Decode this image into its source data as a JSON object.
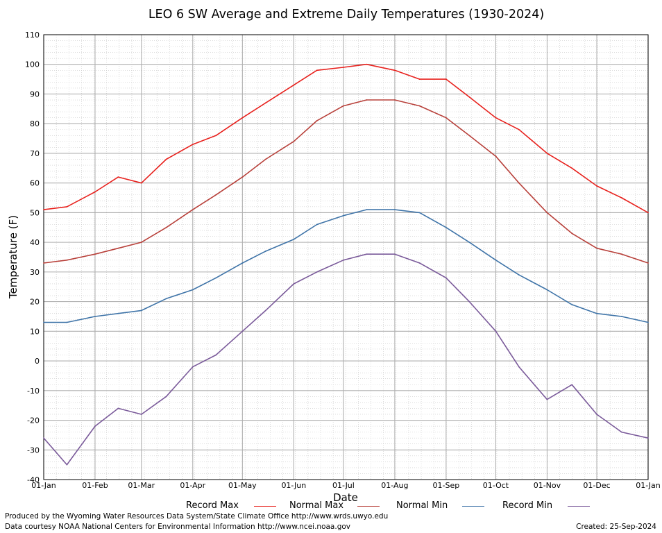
{
  "chart_data": {
    "type": "line",
    "title": "LEO 6 SW Average and Extreme Daily Temperatures (1930-2024)",
    "xlabel": "Date",
    "ylabel": "Temperature (F)",
    "ylim": [
      -40,
      110
    ],
    "yticks": [
      110,
      100,
      90,
      80,
      70,
      60,
      50,
      40,
      30,
      20,
      10,
      0,
      -10,
      -20,
      -30,
      -40
    ],
    "xlim": [
      1,
      366
    ],
    "xticks": [
      {
        "day": 1,
        "label": "01-Jan"
      },
      {
        "day": 32,
        "label": "01-Feb"
      },
      {
        "day": 60,
        "label": "01-Mar"
      },
      {
        "day": 91,
        "label": "01-Apr"
      },
      {
        "day": 121,
        "label": "01-May"
      },
      {
        "day": 152,
        "label": "01-Jun"
      },
      {
        "day": 182,
        "label": "01-Jul"
      },
      {
        "day": 213,
        "label": "01-Aug"
      },
      {
        "day": 244,
        "label": "01-Sep"
      },
      {
        "day": 274,
        "label": "01-Oct"
      },
      {
        "day": 305,
        "label": "01-Nov"
      },
      {
        "day": 335,
        "label": "01-Dec"
      },
      {
        "day": 366,
        "label": "01-Jan"
      }
    ],
    "grid": true,
    "legend_position": "bottom",
    "x": [
      1,
      15,
      32,
      46,
      60,
      75,
      91,
      105,
      121,
      135,
      152,
      166,
      182,
      196,
      213,
      228,
      244,
      258,
      274,
      288,
      305,
      320,
      335,
      350,
      366
    ],
    "series": [
      {
        "name": "Record Max",
        "color": "#e8211d",
        "values": [
          51,
          52,
          57,
          62,
          60,
          68,
          73,
          76,
          82,
          87,
          93,
          98,
          99,
          100,
          98,
          95,
          95,
          89,
          82,
          78,
          70,
          65,
          59,
          55,
          50
        ]
      },
      {
        "name": "Normal Max",
        "color": "#b8403a",
        "values": [
          33,
          34,
          36,
          38,
          40,
          45,
          51,
          56,
          62,
          68,
          74,
          81,
          86,
          88,
          88,
          86,
          82,
          76,
          69,
          60,
          50,
          43,
          38,
          36,
          33
        ]
      },
      {
        "name": "Normal Min",
        "color": "#3f74a8",
        "values": [
          13,
          13,
          15,
          16,
          17,
          21,
          24,
          28,
          33,
          37,
          41,
          46,
          49,
          51,
          51,
          50,
          45,
          40,
          34,
          29,
          24,
          19,
          16,
          15,
          13
        ]
      },
      {
        "name": "Record Min",
        "color": "#7a5a9a",
        "values": [
          -26,
          -35,
          -22,
          -16,
          -18,
          -12,
          -2,
          2,
          10,
          17,
          26,
          30,
          34,
          36,
          36,
          33,
          28,
          20,
          10,
          -2,
          -13,
          -8,
          -18,
          -24,
          -26
        ]
      }
    ]
  },
  "footer": {
    "credit_line1": "Produced by the Wyoming Water Resources Data System/State Climate Office http://www.wrds.uwyo.edu",
    "credit_line2": "Data courtesy NOAA National Centers for Environmental Information http://www.ncei.noaa.gov",
    "created": "Created:  25-Sep-2024"
  }
}
